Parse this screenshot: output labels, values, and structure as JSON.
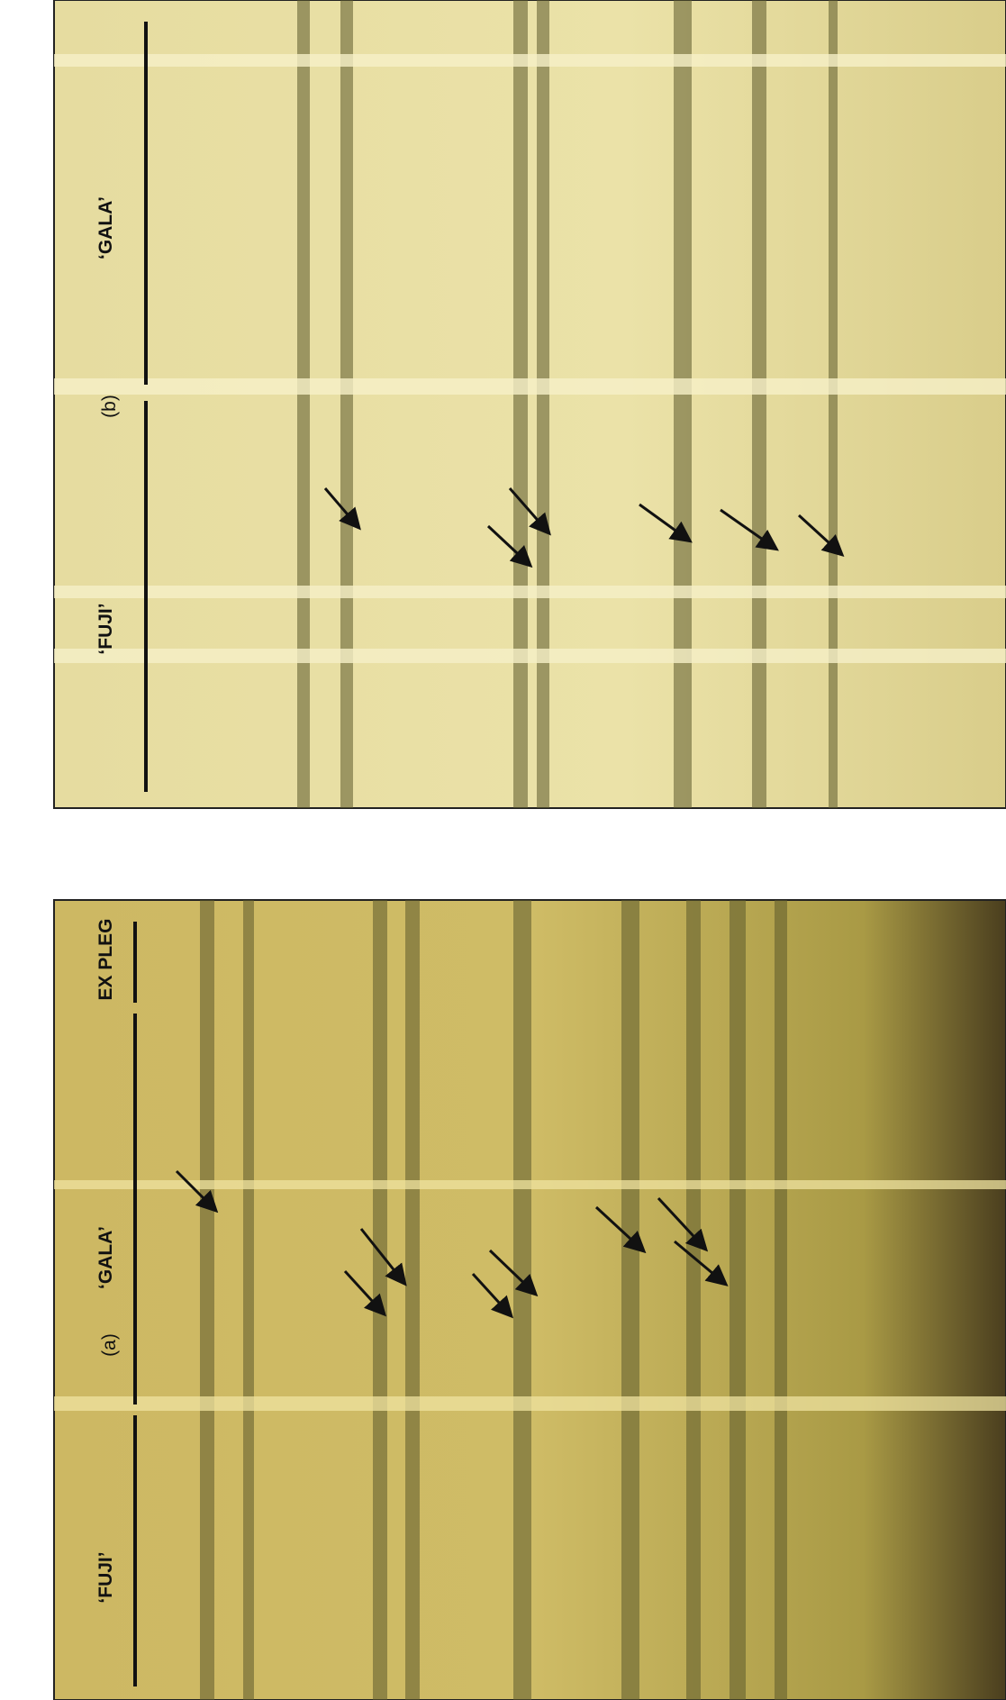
{
  "panels": [
    {
      "label": "(a)",
      "lanes": [
        "‘FUJI’",
        "‘GALA’",
        "EX PLEG"
      ]
    },
    {
      "label": "(b)",
      "lanes": [
        "‘FUJI’",
        "‘GALA’"
      ]
    }
  ]
}
